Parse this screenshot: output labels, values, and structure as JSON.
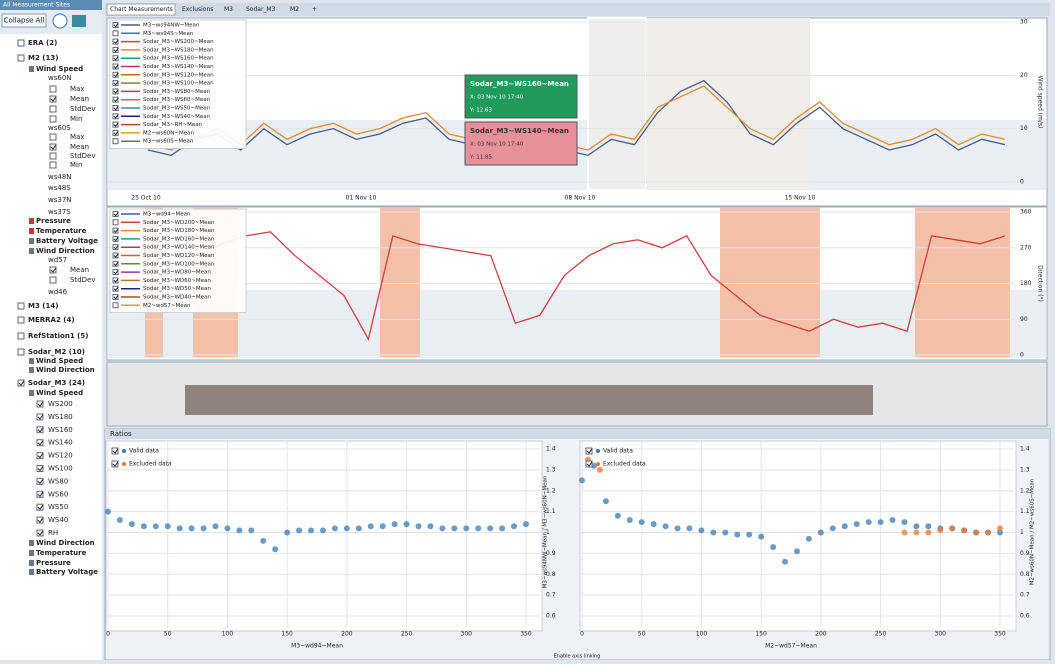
{
  "sidebar": {
    "title": "All Measurement Sites",
    "button": "Collapse All",
    "items": [
      "ERA (2)",
      "M2 (13)",
      "Wind Speed",
      "ws60N",
      "Max",
      "Mean",
      "StdDev",
      "Min",
      "ws60S",
      "Max",
      "Mean",
      "StdDev",
      "Min",
      "ws48N",
      "ws48S",
      "ws37N",
      "ws37S",
      "Pressure",
      "Temperature",
      "Battery Voltage",
      "Wind Direction",
      "wd57",
      "Mean",
      "StdDev",
      "wd46",
      "M3 (14)",
      "MERRA2 (4)",
      "RefStation1 (5)",
      "Sodar_M2 (10)",
      "Wind Speed",
      "Wind Direction",
      "Sodar_M3 (24)",
      "Wind Speed",
      "WS200",
      "WS180",
      "WS160",
      "WS140",
      "WS120",
      "WS100",
      "WS80",
      "WS60",
      "WS50",
      "WS40",
      "RH",
      "Wind Direction",
      "Temperature",
      "Pressure",
      "Battery Voltage"
    ]
  },
  "tabs": [
    "Chart Measurements",
    "Exclusions",
    "M3",
    "Sodar_M3",
    "M2",
    "+"
  ],
  "wind_chart": {
    "type": "line",
    "ylabel": "Wind speed (m/s)",
    "ylim": [
      0,
      30
    ],
    "yticks": [
      0,
      10,
      20,
      30
    ],
    "xlabels": [
      "25 Oct 10",
      "01 Nov 10",
      "08 Nov 10",
      "15 Nov 10"
    ],
    "series": [
      {
        "name": "M3~ws94NW~Mean",
        "color": "#4a5a8a",
        "values": [
          6,
          5,
          8,
          9,
          6,
          10,
          7,
          9,
          10,
          8,
          9,
          11,
          12,
          8,
          7,
          9,
          10,
          8,
          6,
          5,
          8,
          7,
          13,
          17,
          19,
          15,
          9,
          7,
          11,
          14,
          10,
          8,
          6,
          7,
          9,
          6,
          8,
          7
        ]
      },
      {
        "name": "M3~ws94S~Mean",
        "color": "#3a6fc0"
      },
      {
        "name": "Sodar_M3~WS200~Mean",
        "color": "#d04040"
      },
      {
        "name": "Sodar_M3~WS180~Mean",
        "color": "#e08a30",
        "values": [
          7,
          6,
          8,
          10,
          7,
          11,
          8,
          10,
          11,
          9,
          10,
          12,
          13,
          9,
          8,
          10,
          11,
          9,
          7,
          6,
          9,
          8,
          14,
          16,
          18,
          14,
          10,
          8,
          12,
          15,
          11,
          9,
          7,
          8,
          10,
          7,
          9,
          8
        ]
      },
      {
        "name": "Sodar_M3~WS160~Mean",
        "color": "#2a9a6a"
      },
      {
        "name": "Sodar_M3~WS140~Mean",
        "color": "#c03060"
      },
      {
        "name": "Sodar_M3~WS120~Mean",
        "color": "#c06a20"
      },
      {
        "name": "Sodar_M3~WS100~Mean",
        "color": "#6a8a30"
      },
      {
        "name": "Sodar_M3~WS80~Mean",
        "color": "#8a40a0"
      },
      {
        "name": "Sodar_M3~WS60~Mean",
        "color": "#d07030"
      },
      {
        "name": "Sodar_M3~WS50~Mean",
        "color": "#3a8aa0"
      },
      {
        "name": "Sodar_M3~WS40~Mean",
        "color": "#202080"
      },
      {
        "name": "Sodar_M3~RH~Mean",
        "color": "#a05030"
      },
      {
        "name": "M2~ws60N~Mean",
        "color": "#e0a020"
      },
      {
        "name": "M3~ws60S~Mean",
        "color": "#707070"
      }
    ]
  },
  "tooltips": [
    {
      "title": "Sodar_M3~WS160~Mean",
      "x": "X: 03 Nov 10 17:40",
      "y": "Y: 12.63"
    },
    {
      "title": "Sodar_M3~WS140~Mean",
      "x": "X: 03 Nov 10 17:40",
      "y": "Y: 11.85"
    }
  ],
  "direction_chart": {
    "type": "line",
    "ylabel": "Direction (°)",
    "ylim": [
      0,
      360
    ],
    "yticks": [
      0,
      90,
      180,
      270,
      360
    ],
    "series": [
      {
        "name": "M3~wd94~Mean",
        "color": "#4a5a8a"
      },
      {
        "name": "Sodar_M3~WD200~Mean",
        "color": "#d04040",
        "values": [
          300,
          200,
          240,
          280,
          300,
          310,
          250,
          200,
          150,
          40,
          300,
          280,
          270,
          260,
          250,
          80,
          100,
          200,
          250,
          280,
          290,
          270,
          300,
          200,
          150,
          100,
          80,
          60,
          90,
          70,
          80,
          60,
          300,
          290,
          280,
          300
        ]
      },
      {
        "name": "Sodar_M3~WD180~Mean",
        "color": "#e08a30"
      },
      {
        "name": "Sodar_M3~WD160~Mean",
        "color": "#2a9a6a"
      },
      {
        "name": "Sodar_M3~WD140~Mean",
        "color": "#c03060"
      },
      {
        "name": "Sodar_M3~WD120~Mean",
        "color": "#c06a20"
      },
      {
        "name": "Sodar_M3~WD100~Mean",
        "color": "#6a8a30"
      },
      {
        "name": "Sodar_M3~WD80~Mean",
        "color": "#8a40a0"
      },
      {
        "name": "Sodar_M3~WD60~Mean",
        "color": "#d07030"
      },
      {
        "name": "Sodar_M3~WD50~Mean",
        "color": "#202080"
      },
      {
        "name": "Sodar_M3~WD40~Mean",
        "color": "#a05030"
      },
      {
        "name": "M2~wd57~Mean",
        "color": "#e0a020"
      }
    ]
  },
  "ratios": {
    "title": "Ratios",
    "footer": "Enable axis linking",
    "charts": [
      {
        "type": "scatter",
        "xlabel": "M3~wd94~Mean",
        "ylabel": "M3~ws94NW~Mean / M3~ws60N~Mean",
        "xlim": [
          0,
          350
        ],
        "xticks": [
          0,
          50,
          100,
          150,
          200,
          250,
          300,
          350
        ],
        "ylim": [
          0.6,
          1.4
        ],
        "yticks": [
          0.6,
          0.7,
          0.8,
          0.9,
          1,
          1.1,
          1.2,
          1.3,
          1.4
        ],
        "series": [
          {
            "name": "Valid data",
            "color": "#3a7ab8",
            "x": [
              0,
              10,
              20,
              30,
              40,
              50,
              60,
              70,
              80,
              90,
              100,
              110,
              120,
              130,
              140,
              150,
              160,
              170,
              180,
              190,
              200,
              210,
              220,
              230,
              240,
              250,
              260,
              270,
              280,
              290,
              300,
              310,
              320,
              330,
              340,
              350
            ],
            "values": [
              1.1,
              1.06,
              1.04,
              1.03,
              1.03,
              1.03,
              1.02,
              1.02,
              1.02,
              1.03,
              1.02,
              1.01,
              1.01,
              0.96,
              0.92,
              1.0,
              1.01,
              1.01,
              1.01,
              1.02,
              1.02,
              1.02,
              1.03,
              1.03,
              1.04,
              1.04,
              1.03,
              1.03,
              1.02,
              1.02,
              1.02,
              1.02,
              1.02,
              1.02,
              1.03,
              1.04
            ]
          },
          {
            "name": "Excluded data",
            "color": "#f07a30",
            "x": [],
            "values": []
          }
        ]
      },
      {
        "type": "scatter",
        "xlabel": "M2~wd57~Mean",
        "ylabel": "M2~ws60N~Mean / M2~ws60S~Mean",
        "xlim": [
          0,
          350
        ],
        "xticks": [
          0,
          50,
          100,
          150,
          200,
          250,
          300,
          350
        ],
        "ylim": [
          0.6,
          1.4
        ],
        "yticks": [
          0.6,
          0.7,
          0.8,
          0.9,
          1,
          1.1,
          1.2,
          1.3,
          1.4
        ],
        "series": [
          {
            "name": "Valid data",
            "color": "#3a7ab8",
            "x": [
              0,
              10,
              20,
              30,
              40,
              50,
              60,
              70,
              80,
              90,
              100,
              110,
              120,
              130,
              140,
              150,
              160,
              170,
              180,
              190,
              200,
              210,
              220,
              230,
              240,
              250,
              260,
              270,
              280,
              290,
              300,
              310,
              320,
              330,
              340,
              350
            ],
            "values": [
              1.25,
              1.32,
              1.15,
              1.08,
              1.06,
              1.05,
              1.04,
              1.03,
              1.02,
              1.02,
              1.01,
              1.0,
              1.0,
              0.99,
              0.99,
              0.98,
              0.93,
              0.86,
              0.91,
              0.97,
              1.0,
              1.02,
              1.03,
              1.04,
              1.05,
              1.05,
              1.06,
              1.05,
              1.03,
              1.03,
              1.02,
              1.02,
              1.01,
              1.0,
              1.0,
              1.0
            ]
          },
          {
            "name": "Excluded data",
            "color": "#f07a30",
            "x": [
              5,
              15,
              270,
              280,
              290,
              300,
              310,
              320,
              330,
              340,
              350
            ],
            "values": [
              1.35,
              1.3,
              1.0,
              1.0,
              1.0,
              1.01,
              1.02,
              1.01,
              1.0,
              1.0,
              1.02
            ]
          }
        ]
      }
    ]
  }
}
